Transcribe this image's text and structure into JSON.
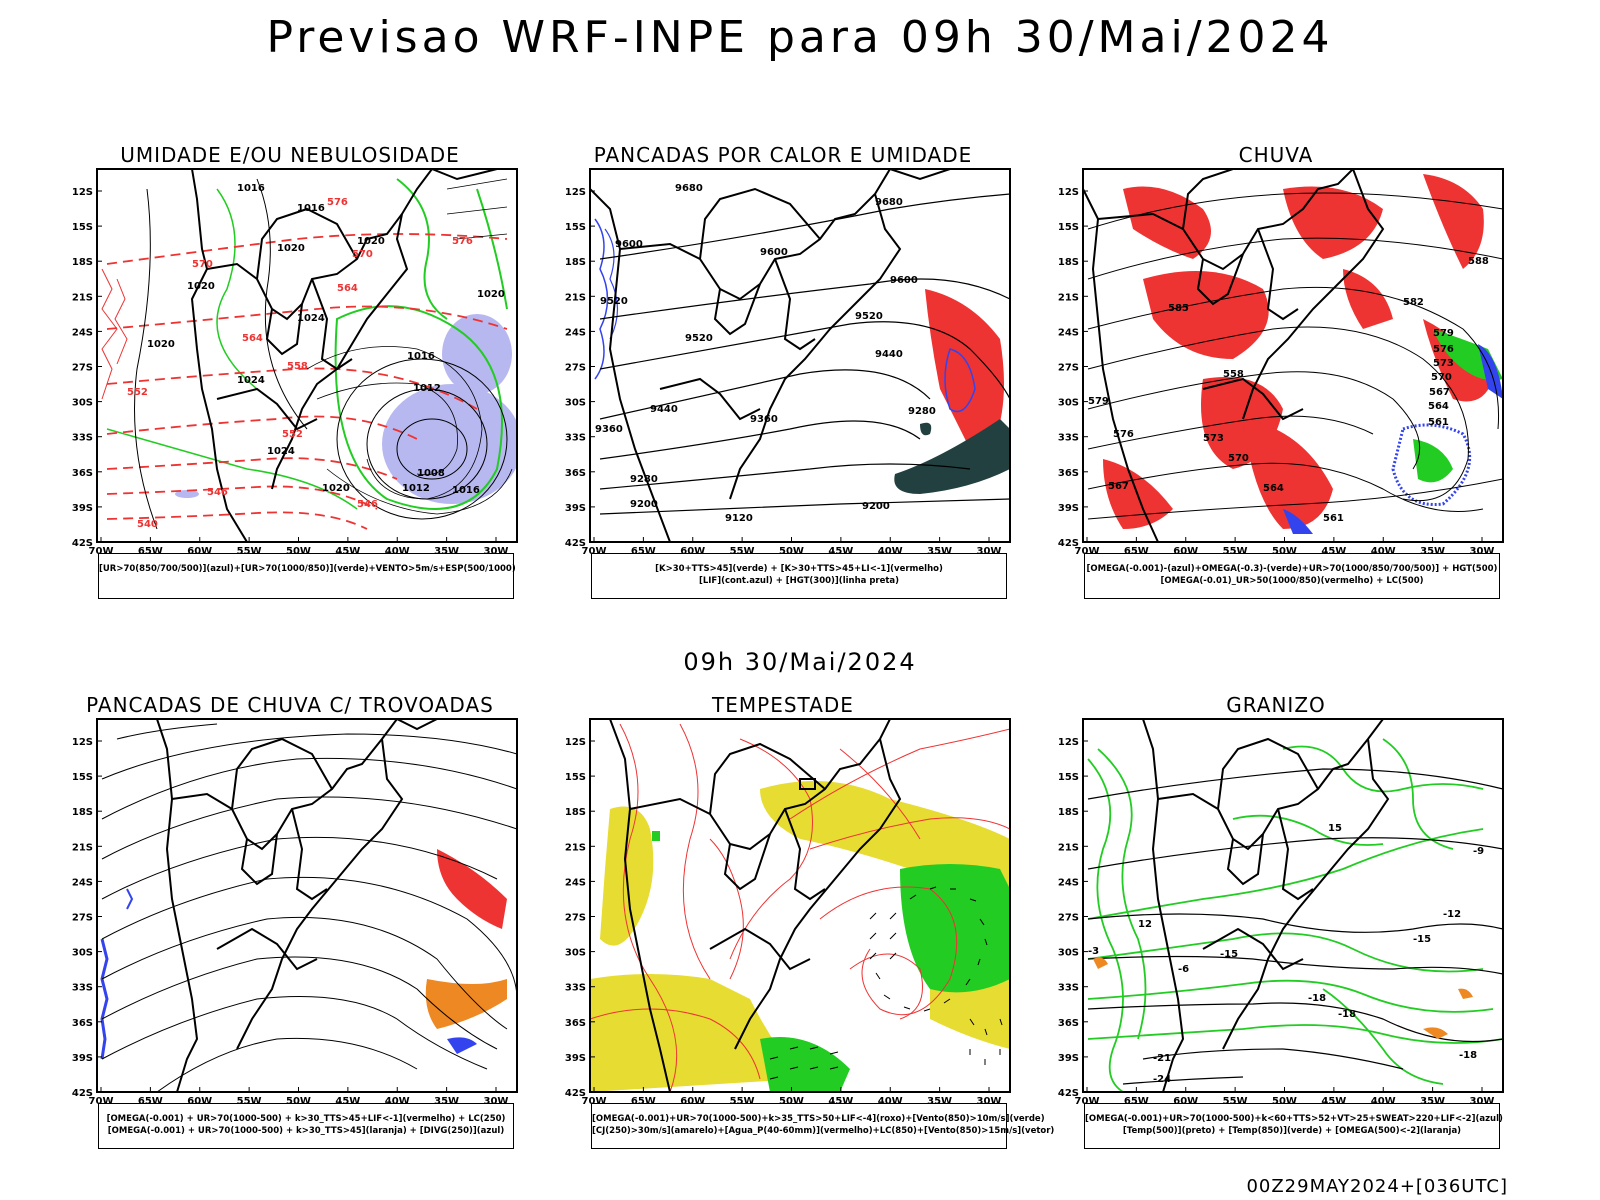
{
  "title": "Previsao WRF-INPE  para 09h 30/Mai/2024",
  "subtitle": "09h 30/Mai/2024",
  "footer": "00Z29MAY2024+[036UTC]",
  "lat_labels": [
    "12S",
    "15S",
    "18S",
    "21S",
    "24S",
    "27S",
    "30S",
    "33S",
    "36S",
    "39S",
    "42S"
  ],
  "lon_labels": [
    "70W",
    "65W",
    "60W",
    "55W",
    "50W",
    "45W",
    "40W",
    "35W",
    "30W"
  ],
  "colors": {
    "green": "#22cc22",
    "red": "#ee3333",
    "blue": "#3344ee",
    "lavender": "#b8b8f0",
    "yellow": "#e6dc32",
    "dark_teal": "#234040",
    "orange": "#ee8822"
  },
  "panels": [
    {
      "title": "UMIDADE E/OU NEBULOSIDADE",
      "legend": [
        "[UR>70(850/700/500)](azul)+[UR>70(1000/850)](verde)+VENTO>5m/s+ESP(500/1000)"
      ],
      "contour_labels": [
        "1016",
        "1016",
        "1020",
        "1020",
        "1020",
        "1020",
        "1024",
        "1020",
        "1016",
        "1012",
        "1024",
        "1024",
        "1020",
        "1008",
        "1016",
        "1012",
        "576",
        "570",
        "576",
        "564",
        "564",
        "558",
        "552",
        "552",
        "546",
        "546",
        "540",
        "570"
      ]
    },
    {
      "title": "PANCADAS POR CALOR E UMIDADE",
      "legend": [
        "[K>30+TTS>45](verde) + [K>30+TTS>45+LI<-1](vermelho)",
        "[LIF](cont.azul) + [HGT(300)](linha preta)"
      ],
      "contour_labels": [
        "9680",
        "9680",
        "9600",
        "9600",
        "9600",
        "9520",
        "9520",
        "9520",
        "9440",
        "9440",
        "9360",
        "9360",
        "9280",
        "9280",
        "9200",
        "9200",
        "9120"
      ]
    },
    {
      "title": "CHUVA",
      "legend": [
        "[OMEGA(-0.001)-(azul)+OMEGA(-0.3)-(verde)+UR>70(1000/850/700/500)] + HGT(500)",
        "[OMEGA(-0.01)_UR>50(1000/850)(vermelho) + LC(500)"
      ],
      "contour_labels": [
        "588",
        "585",
        "582",
        "579",
        "576",
        "573",
        "570",
        "567",
        "564",
        "561",
        "558",
        "579",
        "576",
        "567",
        "573",
        "570",
        "564",
        "561"
      ]
    },
    {
      "title": "PANCADAS DE CHUVA C/ TROVOADAS",
      "legend": [
        "[OMEGA(-0.001) + UR>70(1000-500) + k>30_TTS>45+LIF<-1](vermelho) + LC(250)",
        "[OMEGA(-0.001) + UR>70(1000-500) + k>30_TTS>45](laranja) + [DIVG(250)](azul)"
      ],
      "contour_labels": []
    },
    {
      "title": "TEMPESTADE",
      "legend": [
        "[OMEGA(-0.001)+UR>70(1000-500)+k>35_TTS>50+LIF<-4](roxo)+[Vento(850)>10m/s](verde)",
        "[CJ(250)>30m/s](amarelo)+[Agua_P(40-60mm)](vermelho)+LC(850)+[Vento(850)>15m/s](vetor)"
      ],
      "contour_labels": []
    },
    {
      "title": "GRANIZO",
      "legend": [
        "[OMEGA(-0.001)+UR>70(1000-500)+k<60+TTS>52+VT>25+SWEAT>220+LIF<-2](azul)",
        "[Temp(500)](preto) + [Temp(850)](verde) + [OMEGA(500)<-2](laranja)"
      ],
      "contour_labels": [
        "12",
        "-15",
        "-18",
        "-21",
        "-24",
        "-15",
        "-18",
        "-12",
        "-9",
        "-3",
        "-6",
        "15",
        "-18"
      ]
    }
  ]
}
